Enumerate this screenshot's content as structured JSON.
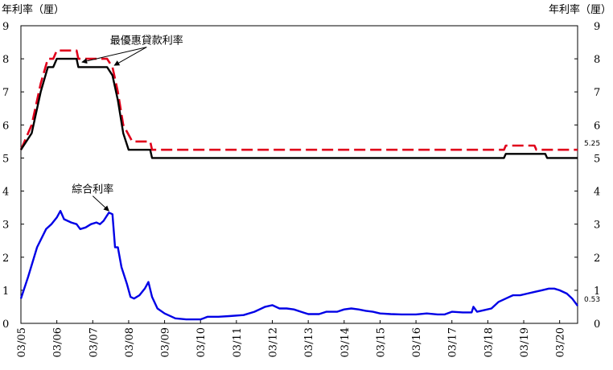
{
  "chart_data": {
    "type": "line",
    "title": "",
    "ylabel_left": "年利率（厘）",
    "ylabel_right": "年利率（厘）",
    "ylim": [
      0,
      9
    ],
    "yticks": [
      0,
      1,
      2,
      3,
      4,
      5,
      6,
      7,
      8,
      9
    ],
    "xlim": [
      2005.0,
      2020.5
    ],
    "xticks": [
      {
        "label": "03/05",
        "x": 2005.0
      },
      {
        "label": "03/06",
        "x": 2006.0
      },
      {
        "label": "03/07",
        "x": 2007.0
      },
      {
        "label": "03/08",
        "x": 2008.0
      },
      {
        "label": "03/09",
        "x": 2009.0
      },
      {
        "label": "03/10",
        "x": 2010.0
      },
      {
        "label": "03/11",
        "x": 2011.0
      },
      {
        "label": "03/12",
        "x": 2012.0
      },
      {
        "label": "03/13",
        "x": 2013.0
      },
      {
        "label": "03/14",
        "x": 2014.0
      },
      {
        "label": "03/15",
        "x": 2015.0
      },
      {
        "label": "03/16",
        "x": 2016.0
      },
      {
        "label": "03/17",
        "x": 2017.0
      },
      {
        "label": "03/18",
        "x": 2018.0
      },
      {
        "label": "03/19",
        "x": 2019.0
      },
      {
        "label": "03/20",
        "x": 2020.0
      }
    ],
    "grid": false,
    "series": [
      {
        "id": "prime_high",
        "color": "#e0001b",
        "style": "dashed",
        "points": [
          [
            2005.0,
            5.25
          ],
          [
            2005.3,
            6.0
          ],
          [
            2005.55,
            7.25
          ],
          [
            2005.75,
            8.0
          ],
          [
            2005.9,
            8.0
          ],
          [
            2006.0,
            8.25
          ],
          [
            2006.55,
            8.25
          ],
          [
            2006.6,
            8.0
          ],
          [
            2007.4,
            8.0
          ],
          [
            2007.55,
            7.75
          ],
          [
            2007.7,
            7.0
          ],
          [
            2007.85,
            6.0
          ],
          [
            2008.1,
            5.5
          ],
          [
            2008.6,
            5.5
          ],
          [
            2008.65,
            5.25
          ],
          [
            2018.45,
            5.25
          ],
          [
            2018.5,
            5.375
          ],
          [
            2019.3,
            5.375
          ],
          [
            2019.35,
            5.25
          ],
          [
            2020.5,
            5.25
          ]
        ]
      },
      {
        "id": "prime_low",
        "color": "#000000",
        "style": "solid",
        "points": [
          [
            2005.0,
            5.25
          ],
          [
            2005.3,
            5.75
          ],
          [
            2005.55,
            7.0
          ],
          [
            2005.75,
            7.75
          ],
          [
            2005.9,
            7.75
          ],
          [
            2006.0,
            8.0
          ],
          [
            2006.55,
            8.0
          ],
          [
            2006.6,
            7.75
          ],
          [
            2007.4,
            7.75
          ],
          [
            2007.55,
            7.5
          ],
          [
            2007.7,
            6.75
          ],
          [
            2007.85,
            5.75
          ],
          [
            2008.0,
            5.25
          ],
          [
            2008.6,
            5.25
          ],
          [
            2008.65,
            5.0
          ],
          [
            2018.45,
            5.0
          ],
          [
            2018.5,
            5.125
          ],
          [
            2019.6,
            5.125
          ],
          [
            2019.65,
            5.0
          ],
          [
            2020.5,
            5.0
          ]
        ]
      },
      {
        "id": "composite",
        "color": "#0000e6",
        "style": "solid",
        "points": [
          [
            2005.0,
            0.75
          ],
          [
            2005.2,
            1.4
          ],
          [
            2005.45,
            2.3
          ],
          [
            2005.7,
            2.85
          ],
          [
            2005.85,
            3.0
          ],
          [
            2006.0,
            3.2
          ],
          [
            2006.1,
            3.4
          ],
          [
            2006.2,
            3.15
          ],
          [
            2006.4,
            3.05
          ],
          [
            2006.55,
            3.0
          ],
          [
            2006.65,
            2.85
          ],
          [
            2006.8,
            2.9
          ],
          [
            2006.95,
            3.0
          ],
          [
            2007.1,
            3.05
          ],
          [
            2007.2,
            3.0
          ],
          [
            2007.3,
            3.1
          ],
          [
            2007.45,
            3.35
          ],
          [
            2007.55,
            3.3
          ],
          [
            2007.62,
            2.3
          ],
          [
            2007.7,
            2.3
          ],
          [
            2007.8,
            1.7
          ],
          [
            2007.95,
            1.2
          ],
          [
            2008.05,
            0.8
          ],
          [
            2008.15,
            0.75
          ],
          [
            2008.3,
            0.85
          ],
          [
            2008.45,
            1.05
          ],
          [
            2008.55,
            1.25
          ],
          [
            2008.65,
            0.8
          ],
          [
            2008.8,
            0.45
          ],
          [
            2009.0,
            0.3
          ],
          [
            2009.3,
            0.15
          ],
          [
            2009.6,
            0.12
          ],
          [
            2010.0,
            0.12
          ],
          [
            2010.2,
            0.2
          ],
          [
            2010.5,
            0.2
          ],
          [
            2010.8,
            0.22
          ],
          [
            2011.2,
            0.25
          ],
          [
            2011.5,
            0.35
          ],
          [
            2011.8,
            0.5
          ],
          [
            2012.0,
            0.55
          ],
          [
            2012.2,
            0.45
          ],
          [
            2012.4,
            0.45
          ],
          [
            2012.6,
            0.42
          ],
          [
            2012.8,
            0.35
          ],
          [
            2013.0,
            0.28
          ],
          [
            2013.3,
            0.28
          ],
          [
            2013.5,
            0.35
          ],
          [
            2013.8,
            0.35
          ],
          [
            2014.0,
            0.42
          ],
          [
            2014.2,
            0.45
          ],
          [
            2014.4,
            0.42
          ],
          [
            2014.6,
            0.38
          ],
          [
            2014.8,
            0.35
          ],
          [
            2015.0,
            0.3
          ],
          [
            2015.3,
            0.28
          ],
          [
            2015.6,
            0.27
          ],
          [
            2016.0,
            0.27
          ],
          [
            2016.3,
            0.3
          ],
          [
            2016.6,
            0.27
          ],
          [
            2016.8,
            0.27
          ],
          [
            2017.0,
            0.35
          ],
          [
            2017.3,
            0.33
          ],
          [
            2017.55,
            0.33
          ],
          [
            2017.6,
            0.5
          ],
          [
            2017.7,
            0.35
          ],
          [
            2017.9,
            0.4
          ],
          [
            2018.1,
            0.45
          ],
          [
            2018.3,
            0.65
          ],
          [
            2018.5,
            0.75
          ],
          [
            2018.7,
            0.85
          ],
          [
            2018.9,
            0.85
          ],
          [
            2019.1,
            0.9
          ],
          [
            2019.3,
            0.95
          ],
          [
            2019.5,
            1.0
          ],
          [
            2019.7,
            1.05
          ],
          [
            2019.85,
            1.05
          ],
          [
            2020.0,
            1.0
          ],
          [
            2020.2,
            0.9
          ],
          [
            2020.35,
            0.75
          ],
          [
            2020.5,
            0.53
          ]
        ]
      }
    ],
    "annotations": [
      {
        "id": "prime",
        "text": "最優惠貸款利率",
        "x": 2008.5,
        "y": 8.45,
        "arrows": [
          [
            2006.7,
            7.9
          ],
          [
            2007.6,
            7.8
          ]
        ]
      },
      {
        "id": "composite",
        "text": "綜合利率",
        "x": 2007.0,
        "y": 3.95,
        "arrows": [
          [
            2007.45,
            3.4
          ]
        ]
      }
    ],
    "end_values": [
      {
        "id": "prime_high_end",
        "text": "5.25",
        "y": 5.25
      },
      {
        "id": "composite_end",
        "text": "0.53",
        "y": 0.53
      }
    ]
  }
}
